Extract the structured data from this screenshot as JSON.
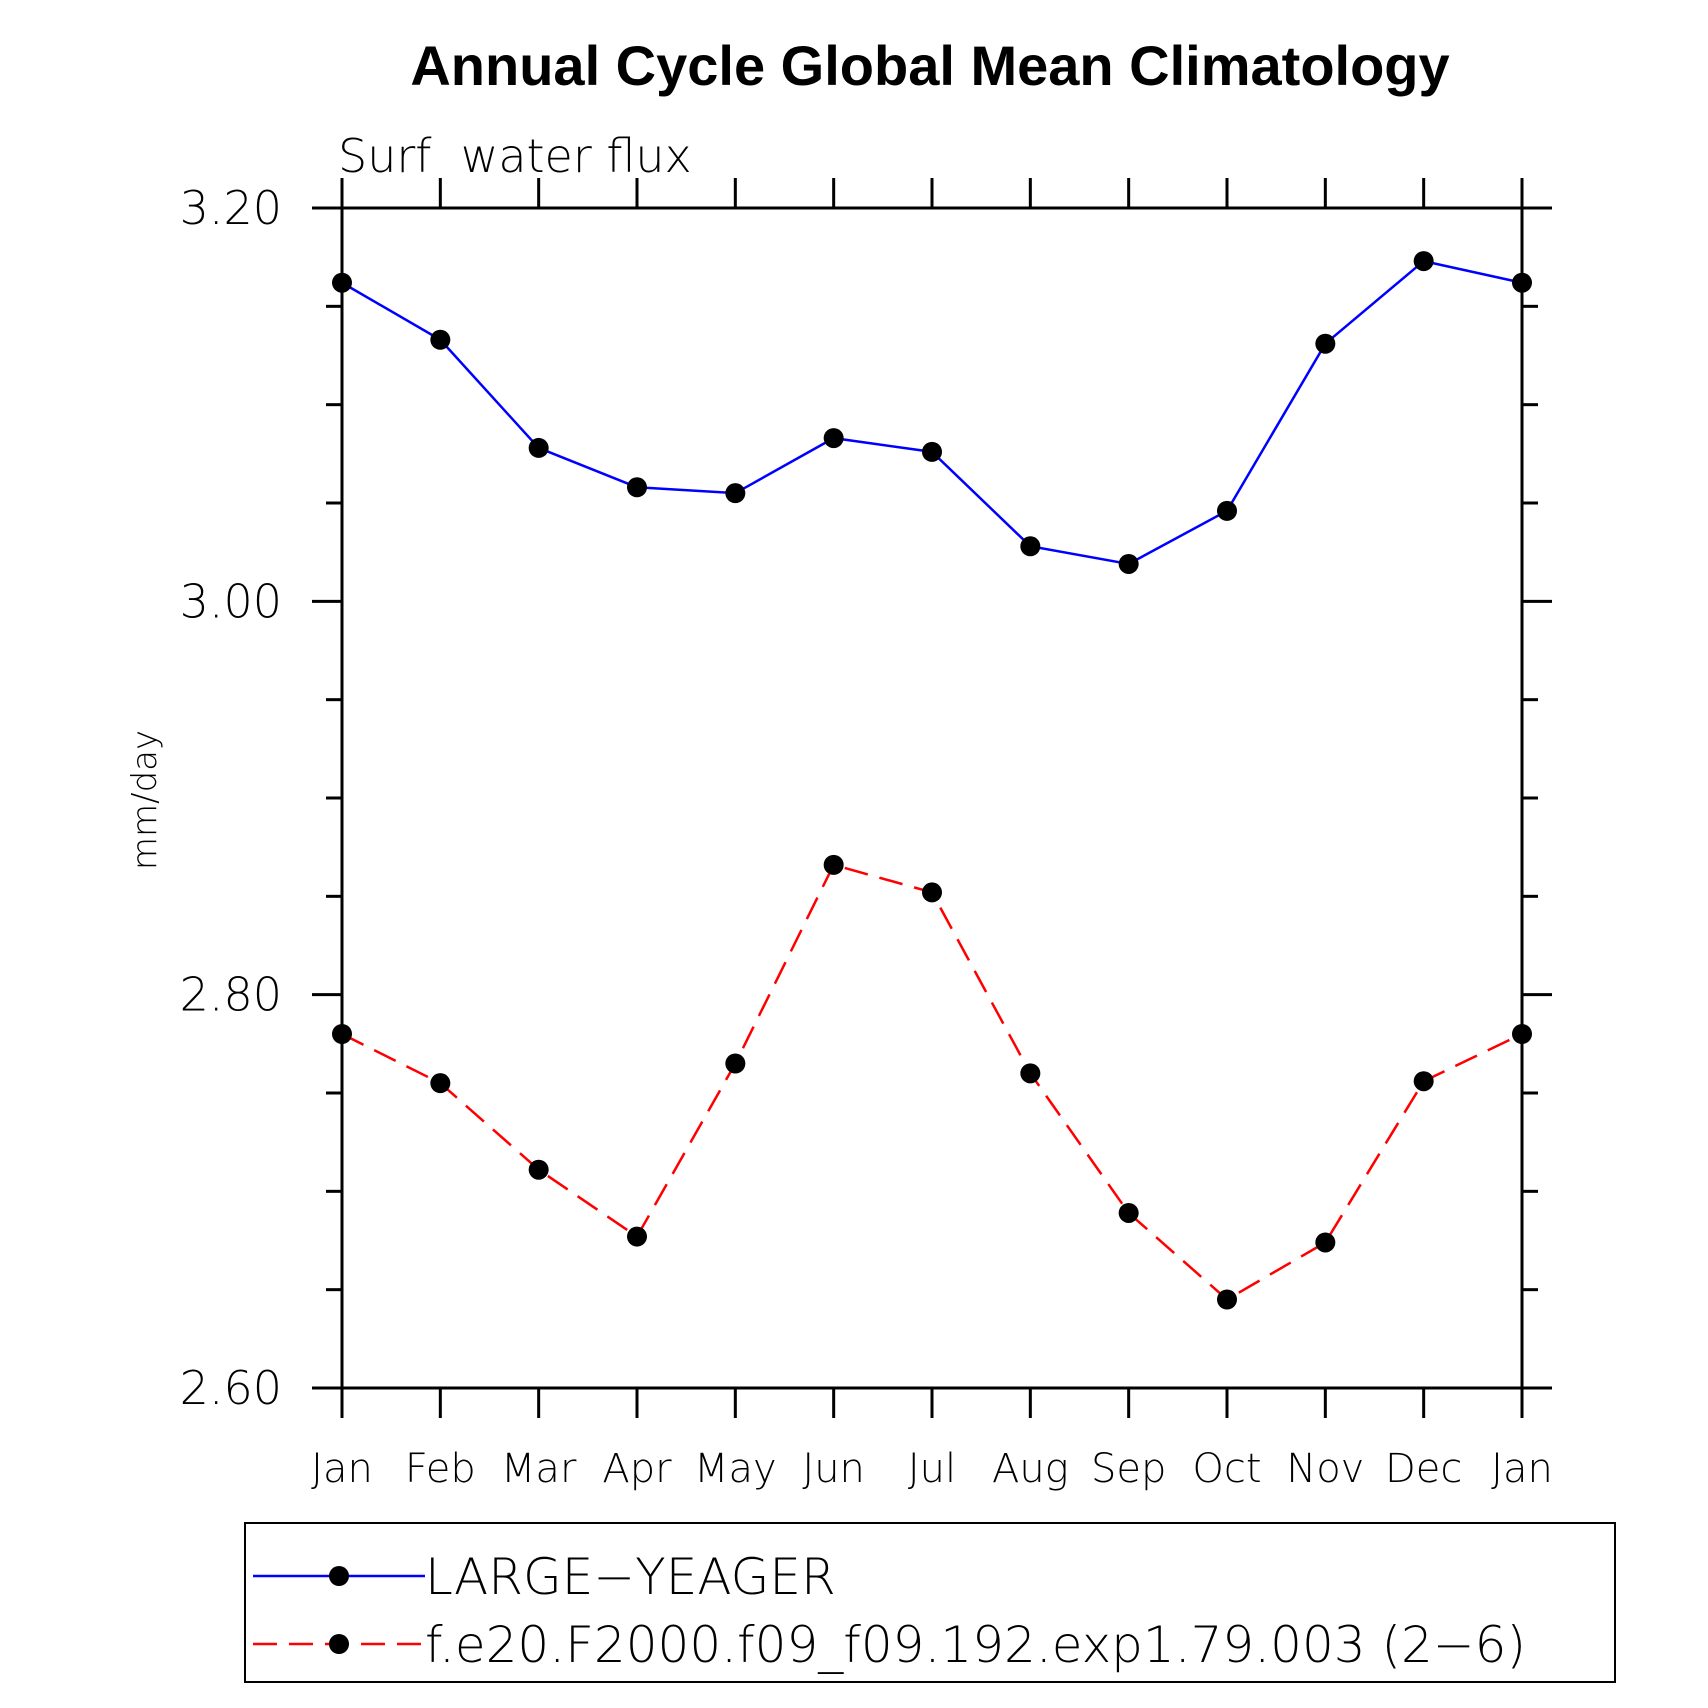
{
  "chart_data": {
    "type": "line",
    "title": "Annual Cycle Global Mean Climatology",
    "subtitle": "Surf  water flux",
    "ylabel": "mm/day",
    "xlabel": "",
    "categories": [
      "Jan",
      "Feb",
      "Mar",
      "Apr",
      "May",
      "Jun",
      "Jul",
      "Aug",
      "Sep",
      "Oct",
      "Nov",
      "Dec",
      "Jan"
    ],
    "ylim": [
      2.6,
      3.2
    ],
    "yticks": [
      "3.20",
      "3.00",
      "2.80",
      "2.60"
    ],
    "ytick_values": [
      3.2,
      3.0,
      2.8,
      2.6
    ],
    "grid": false,
    "legend_position": "bottom",
    "series": [
      {
        "name": "LARGE−YEAGER",
        "color": "#0000ff",
        "dash": "solid",
        "marker": "filled-circle",
        "values": [
          3.162,
          3.133,
          3.078,
          3.058,
          3.055,
          3.083,
          3.076,
          3.028,
          3.019,
          3.046,
          3.131,
          3.173,
          3.162
        ]
      },
      {
        "name": "f.e20.F2000.f09_f09.192.exp1.79.003 (2−6)",
        "color": "#ff0000",
        "dash": "dashed",
        "marker": "filled-circle",
        "values": [
          2.78,
          2.755,
          2.711,
          2.677,
          2.765,
          2.866,
          2.852,
          2.76,
          2.689,
          2.645,
          2.674,
          2.756,
          2.78
        ]
      }
    ]
  }
}
